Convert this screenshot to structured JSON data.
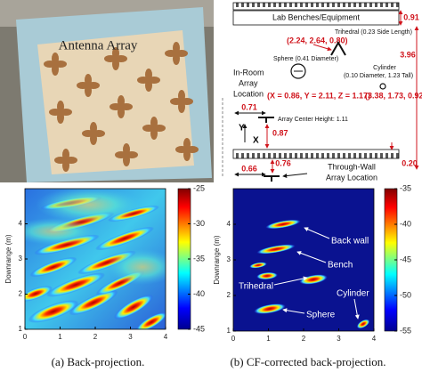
{
  "photo": {
    "label": "Antenna Array"
  },
  "diagram": {
    "benches": "Lab Benches/Equipment",
    "bench_depth": "0.91",
    "room_length": "3.96",
    "trihedral": "Trihedral (0.23 Side Length)",
    "trihedral_pos": "(2.24, 2.64, 0.80)",
    "sphere": "Sphere (0.41 Diameter)",
    "cylinder": [
      "Cylinder",
      "(0.10 Diameter, 1.23 Tall)"
    ],
    "in_room": [
      "In-Room",
      "Array",
      "Location"
    ],
    "sphere_pos": "(X = 0.86, Y = 2.11, Z = 1.17)",
    "cylinder_pos": "(3.38, 1.73, 0.92)",
    "array_offset": "0.71",
    "array_height": "Array Center Height: 1.11",
    "array_to_wall": "0.87",
    "axis_y": "Y",
    "axis_x": "X",
    "wall_offset": "0.66",
    "wall_gap": "0.76",
    "wall_margin": "0.20",
    "through_wall": [
      "Through-Wall",
      "Array Location"
    ]
  },
  "panels": [
    {
      "caption": "(a) Back-projection.",
      "ylabel": "Downrange (m)",
      "xlim": [
        0,
        4
      ],
      "ylim": [
        1,
        5
      ],
      "xticks": [
        0,
        1,
        2,
        3,
        4
      ],
      "yticks": [
        1,
        2,
        3,
        4
      ],
      "clim": [
        -45,
        -25
      ],
      "cticks": [
        -25,
        -30,
        -35,
        -40,
        -45
      ]
    },
    {
      "caption": "(b) CF-corrected back-projection.",
      "ylabel": "Downrange (m)",
      "xlim": [
        0,
        4
      ],
      "ylim": [
        1,
        5
      ],
      "xticks": [
        0,
        1,
        2,
        3,
        4
      ],
      "yticks": [
        1,
        2,
        3,
        4
      ],
      "clim": [
        -55,
        -35
      ],
      "cticks": [
        -35,
        -40,
        -45,
        -50,
        -55
      ],
      "annotations": [
        "Back wall",
        "Bench",
        "Trihedral",
        "Cylinder",
        "Sphere"
      ]
    }
  ]
}
